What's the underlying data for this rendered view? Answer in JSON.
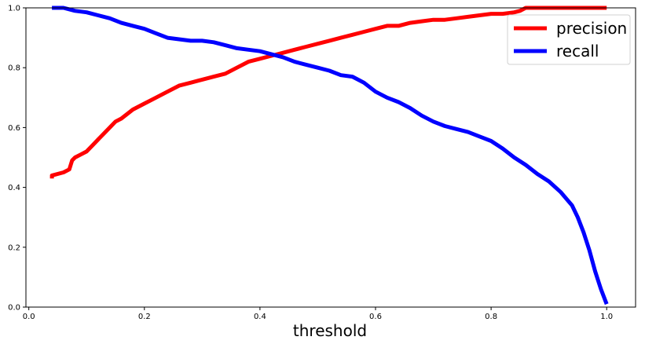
{
  "chart_data": {
    "type": "line",
    "title": "",
    "xlabel": "threshold",
    "ylabel": "",
    "xlim": [
      -0.005,
      1.05
    ],
    "ylim": [
      0.0,
      1.0
    ],
    "xticks": [
      0.0,
      0.2,
      0.4,
      0.6,
      0.8,
      1.0
    ],
    "xtick_labels": [
      "0.0",
      "0.2",
      "0.4",
      "0.6",
      "0.8",
      "1.0"
    ],
    "yticks": [
      0.0,
      0.2,
      0.4,
      0.6,
      0.8,
      1.0
    ],
    "ytick_labels": [
      "0.0",
      "0.2",
      "0.4",
      "0.6",
      "0.8",
      "1.0"
    ],
    "grid": false,
    "legend_position": "top-right",
    "series": [
      {
        "name": "precision",
        "color": "#ff0000",
        "x": [
          0.04,
          0.04,
          0.06,
          0.07,
          0.075,
          0.08,
          0.09,
          0.1,
          0.11,
          0.12,
          0.13,
          0.14,
          0.15,
          0.16,
          0.18,
          0.2,
          0.22,
          0.24,
          0.26,
          0.28,
          0.3,
          0.32,
          0.34,
          0.36,
          0.38,
          0.4,
          0.42,
          0.44,
          0.46,
          0.48,
          0.5,
          0.52,
          0.54,
          0.56,
          0.58,
          0.6,
          0.62,
          0.64,
          0.66,
          0.68,
          0.7,
          0.72,
          0.74,
          0.76,
          0.78,
          0.8,
          0.82,
          0.84,
          0.85,
          0.86,
          0.9,
          0.95,
          1.0
        ],
        "y": [
          0.43,
          0.44,
          0.45,
          0.46,
          0.49,
          0.5,
          0.51,
          0.52,
          0.54,
          0.56,
          0.58,
          0.6,
          0.62,
          0.63,
          0.66,
          0.68,
          0.7,
          0.72,
          0.74,
          0.75,
          0.76,
          0.77,
          0.78,
          0.8,
          0.82,
          0.83,
          0.84,
          0.85,
          0.86,
          0.87,
          0.88,
          0.89,
          0.9,
          0.91,
          0.92,
          0.93,
          0.94,
          0.94,
          0.95,
          0.955,
          0.96,
          0.96,
          0.965,
          0.97,
          0.975,
          0.98,
          0.98,
          0.985,
          0.99,
          1.0,
          1.0,
          1.0,
          1.0
        ]
      },
      {
        "name": "recall",
        "color": "#0000ff",
        "x": [
          0.04,
          0.06,
          0.08,
          0.1,
          0.12,
          0.14,
          0.16,
          0.18,
          0.2,
          0.22,
          0.24,
          0.26,
          0.28,
          0.3,
          0.32,
          0.34,
          0.36,
          0.38,
          0.4,
          0.42,
          0.44,
          0.46,
          0.48,
          0.5,
          0.52,
          0.54,
          0.56,
          0.58,
          0.6,
          0.62,
          0.64,
          0.66,
          0.68,
          0.7,
          0.72,
          0.74,
          0.76,
          0.78,
          0.8,
          0.82,
          0.84,
          0.86,
          0.88,
          0.9,
          0.92,
          0.94,
          0.95,
          0.96,
          0.97,
          0.98,
          0.99,
          1.0
        ],
        "y": [
          1.0,
          1.0,
          0.99,
          0.985,
          0.975,
          0.965,
          0.95,
          0.94,
          0.93,
          0.915,
          0.9,
          0.895,
          0.89,
          0.89,
          0.885,
          0.875,
          0.865,
          0.86,
          0.855,
          0.845,
          0.835,
          0.82,
          0.81,
          0.8,
          0.79,
          0.775,
          0.77,
          0.75,
          0.72,
          0.7,
          0.685,
          0.665,
          0.64,
          0.62,
          0.605,
          0.595,
          0.585,
          0.57,
          0.555,
          0.53,
          0.5,
          0.475,
          0.445,
          0.42,
          0.385,
          0.34,
          0.3,
          0.25,
          0.19,
          0.12,
          0.06,
          0.01
        ]
      }
    ]
  }
}
